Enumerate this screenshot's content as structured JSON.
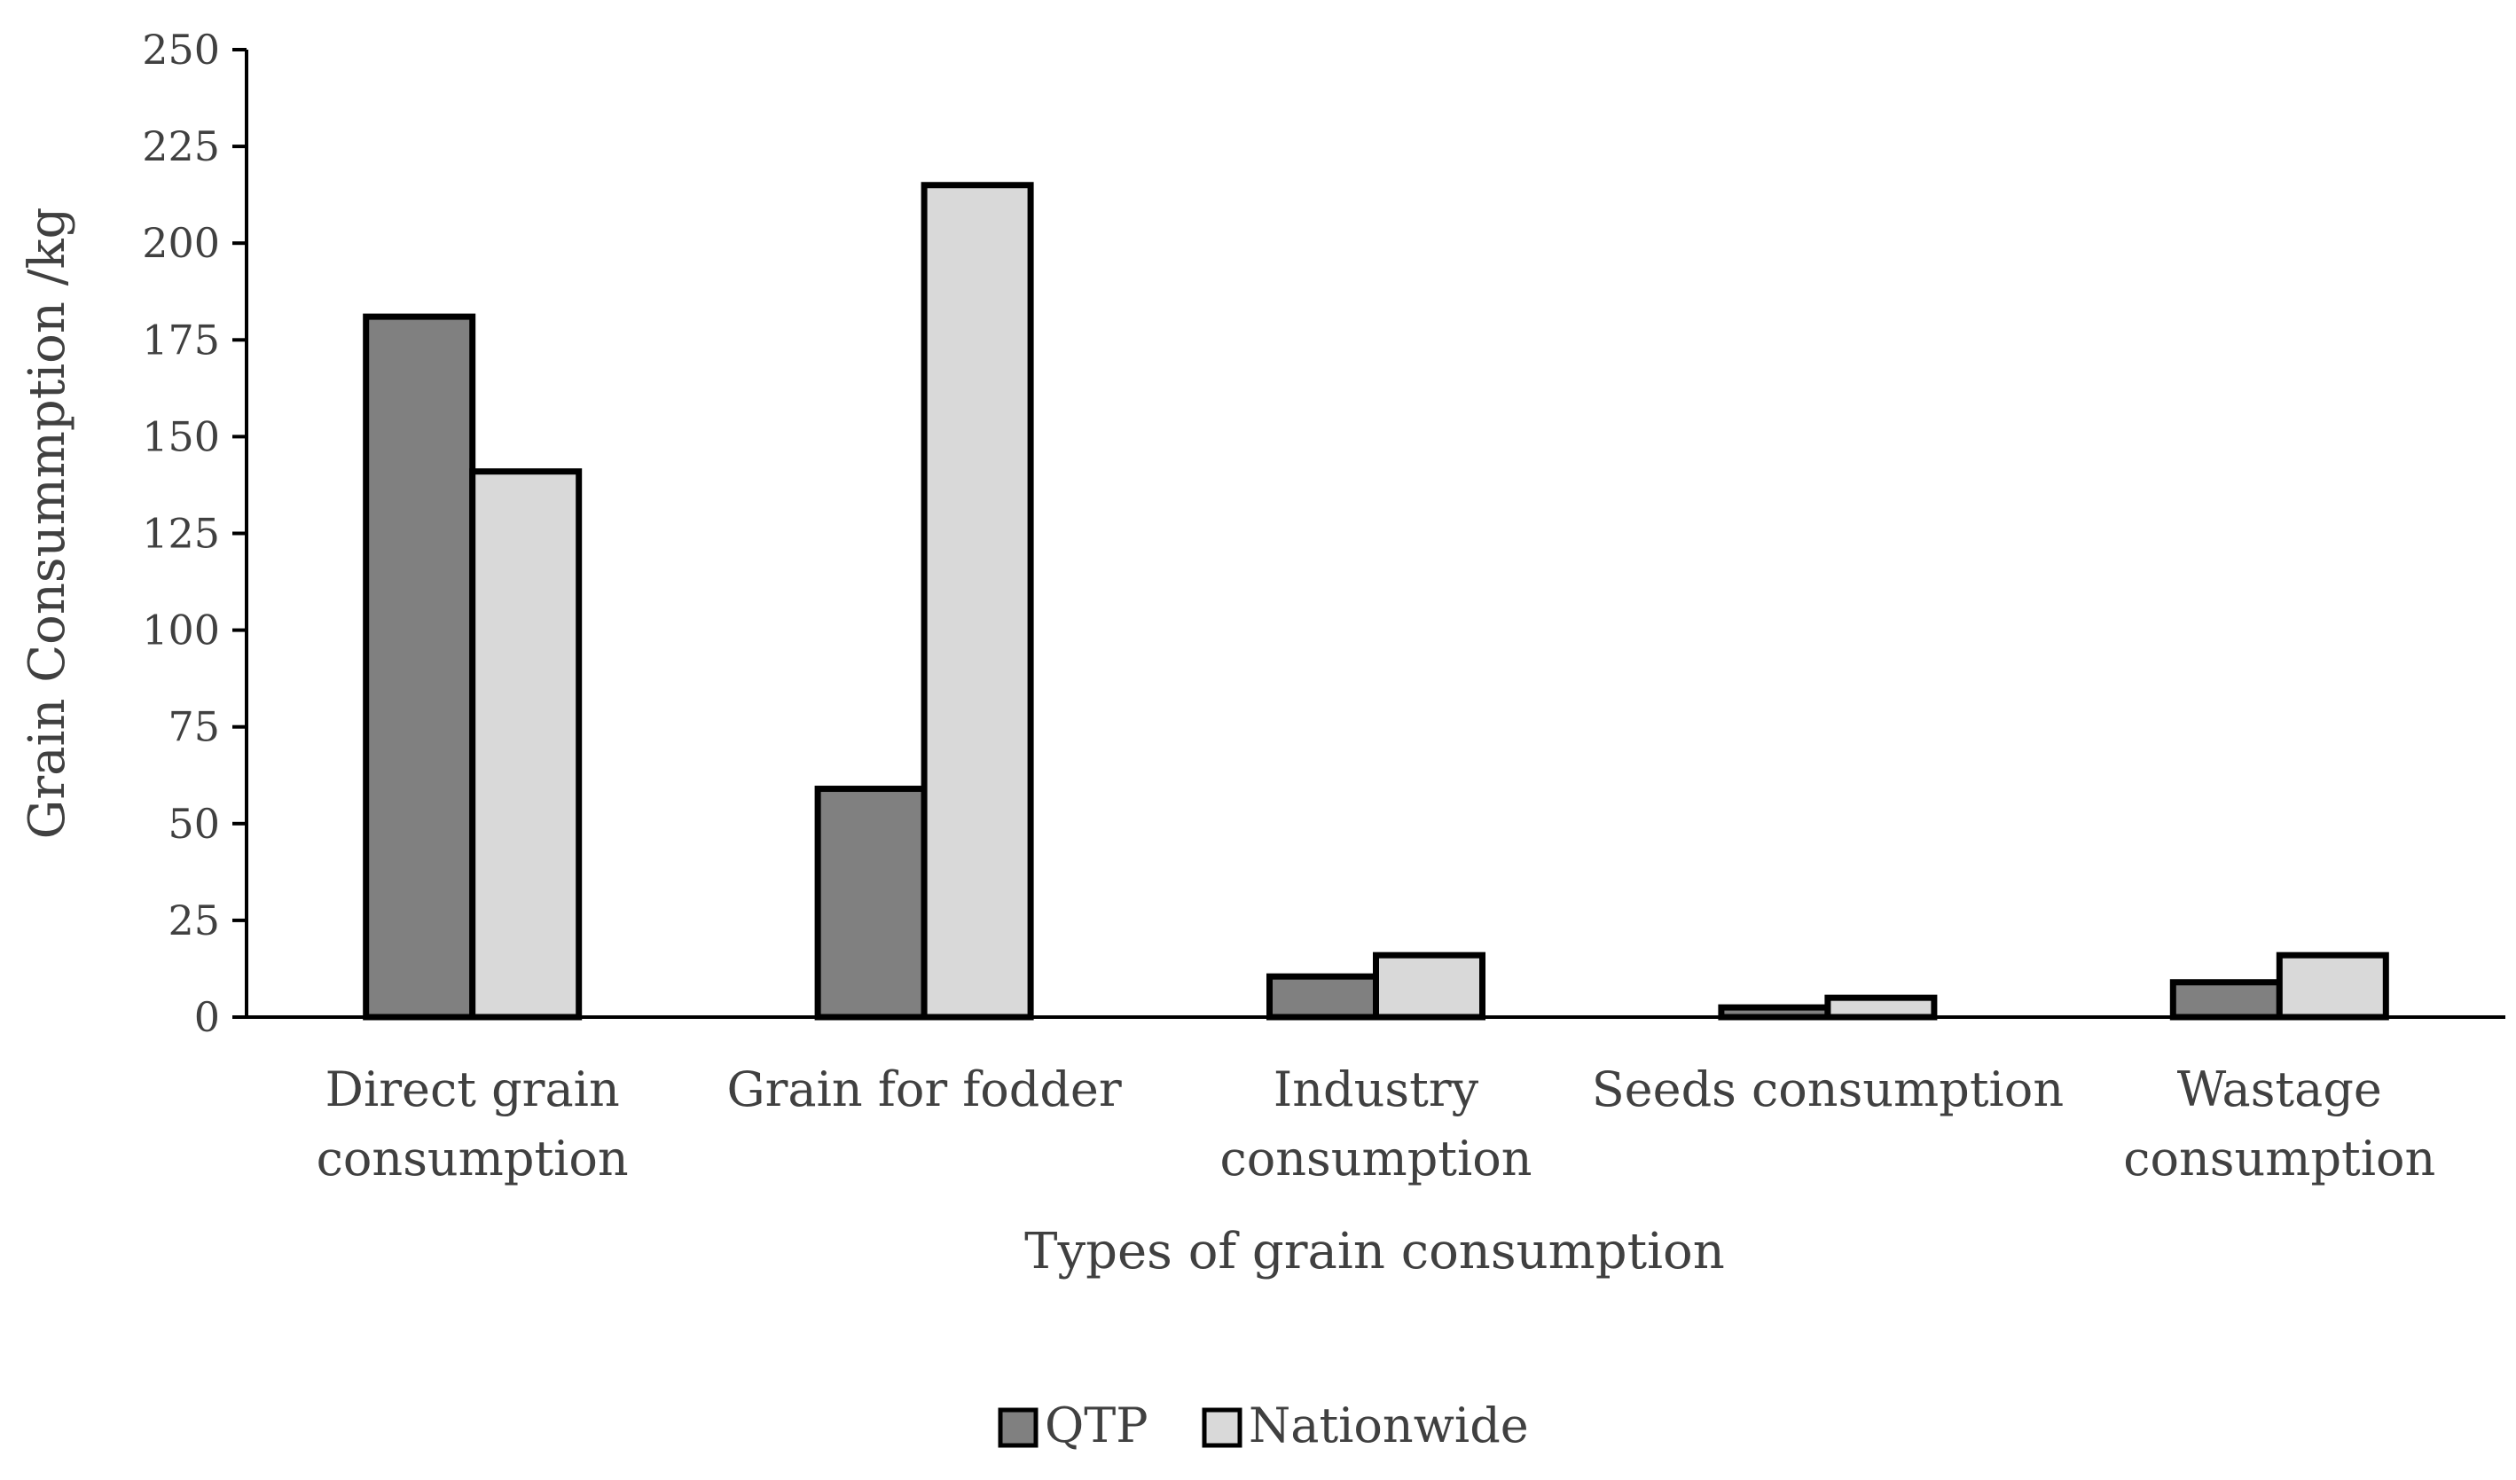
{
  "chart_data": {
    "type": "bar",
    "title": "",
    "xlabel": "Types of grain consumption",
    "ylabel": "Grain Consummption /kg",
    "ylim": [
      0,
      250
    ],
    "yticks": [
      0,
      25,
      50,
      75,
      100,
      125,
      150,
      175,
      200,
      225,
      250
    ],
    "ytick_labels": [
      "0",
      "25",
      "50",
      "75",
      "100",
      "125",
      "150",
      "175",
      "200",
      "225",
      "250"
    ],
    "categories": [
      [
        "Direct grain",
        "consumption"
      ],
      [
        "Grain for fodder"
      ],
      [
        "Industry",
        "consumption"
      ],
      [
        "Seeds consumption"
      ],
      [
        "Wastage",
        "consumption"
      ]
    ],
    "series": [
      {
        "name": "QTP",
        "color": "#808080",
        "values": [
          181,
          59,
          10.5,
          2.5,
          9
        ]
      },
      {
        "name": "Nationwide",
        "color": "#d9d9d9",
        "values": [
          141,
          215,
          16,
          5,
          16
        ]
      }
    ],
    "legend": "bottom-center",
    "grid": false
  }
}
